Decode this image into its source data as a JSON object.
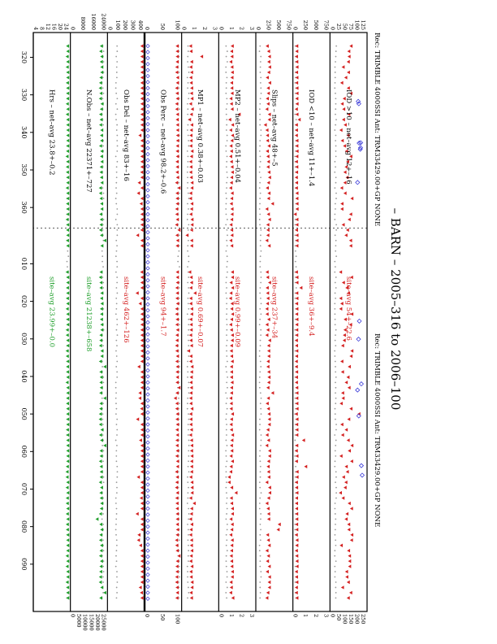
{
  "title": "– BARN – 2005–316 to 2006–100",
  "header_left": "Rec: TRIMBLE 4000SSI Ant: TRM33429.00+GP NONE",
  "header_right": "Rec: TRIMBLE 4000SSI Ant: TRM33429.00+GP NONE",
  "colors": {
    "red": "#d42020",
    "green": "#1e9e2a",
    "blue": "#3a3ad8",
    "gray": "#9a9a9a",
    "black": "#000000"
  },
  "chart_data": {
    "type": "scatter",
    "orientation": "rotated-90-clockwise",
    "x_ticks_1": [
      "320",
      "330",
      "340",
      "350",
      "360"
    ],
    "x_ticks_2": [
      "010",
      "020",
      "030",
      "040",
      "050",
      "060",
      "070",
      "080",
      "090"
    ],
    "year_break_after_doy": 365,
    "x_range": [
      316,
      465
    ],
    "panels": [
      {
        "id": "iod_gt10",
        "label_net": "IOD >10 – net–avg 12+–16",
        "label_site": "site–avg 54+–22.6",
        "ticks_left": [
          "125",
          "100",
          "75",
          "50",
          "25",
          "0"
        ],
        "ticks_right": [
          "250",
          "200",
          "150",
          "100",
          "50",
          "0"
        ],
        "ylim": [
          0,
          125
        ],
        "site_level": 54,
        "site_spread": 22.6,
        "net_level": 12,
        "color": "red",
        "extra": "blue_diamonds"
      },
      {
        "id": "iod_lt10",
        "label_net": "IOD <10 – net–avg 11+–1.4",
        "label_site": "site–avg 36+–9.4",
        "ticks_left": [
          "750",
          "500",
          "250",
          "0"
        ],
        "ticks_right": [
          "3",
          "2",
          "1",
          "0"
        ],
        "ylim": [
          0,
          750
        ],
        "site_level": 36,
        "site_spread": 9.4,
        "net_level": 11,
        "color": "red",
        "extra": "none"
      },
      {
        "id": "slips",
        "label_net": "Slips – net–avg 48+–5",
        "label_site": "site–avg 237+–34",
        "ticks_left": [
          "750",
          "500",
          "250",
          "0"
        ],
        "ticks_right": [],
        "ylim": [
          0,
          750
        ],
        "site_level": 237,
        "site_spread": 34,
        "net_level": 48,
        "color": "red",
        "extra": "none"
      },
      {
        "id": "mp2",
        "label_net": "MP2 – net–avg 0.51+–0.04",
        "label_site": "site–avg 0.99+–0.09",
        "ticks_left": [
          "3",
          "2",
          "1",
          "0"
        ],
        "ticks_right": [
          "3",
          "2",
          "1",
          "0"
        ],
        "ylim": [
          0,
          3
        ],
        "site_level": 0.99,
        "site_spread": 0.09,
        "net_level": 0.51,
        "color": "red",
        "extra": "none"
      },
      {
        "id": "mp1",
        "label_net": "MP1 – net–avg 0.38+–0.03",
        "label_site": "site–avg 0.69+–0.07",
        "ticks_left": [
          "3",
          "2",
          "1",
          "0"
        ],
        "ticks_right": [],
        "ylim": [
          0,
          3
        ],
        "site_level": 0.69,
        "site_spread": 0.07,
        "net_level": 0.38,
        "color": "red",
        "extra": "none"
      },
      {
        "id": "obs_perc",
        "label_net": "Obs Perc – net–avg 98.2+–0.6",
        "label_site": "site–avg 94+–1.7",
        "ticks_left": [
          "100",
          "50",
          "0"
        ],
        "ticks_right": [
          "100",
          "50",
          "0"
        ],
        "ylim": [
          0,
          100
        ],
        "site_level": 94,
        "site_spread": 1.7,
        "net_level": 98.2,
        "color": "red",
        "extra": "blue_diamonds_row"
      },
      {
        "id": "obs_del",
        "label_net": "Obs Del – net–avg 83+–16",
        "label_site": "site–avg 462+–126",
        "ticks_left": [
          "400",
          "300",
          "200",
          "100",
          "0"
        ],
        "ticks_right": [],
        "ylim": [
          0,
          400
        ],
        "site_level": 462,
        "site_spread": 126,
        "net_level": 83,
        "color": "red",
        "extra": "none"
      },
      {
        "id": "n_obs",
        "label_net": "N.Obs – net–avg 22371+–727",
        "label_site": "site–avg 21238+–658",
        "ticks_left": [
          "24000",
          "16000",
          "8000",
          "0"
        ],
        "ticks_right": [
          "25000",
          "20000",
          "15000",
          "10000",
          "5000",
          "0"
        ],
        "ylim": [
          0,
          24000
        ],
        "site_level": 21238,
        "site_spread": 658,
        "net_level": 22371,
        "color": "green",
        "extra": "none"
      },
      {
        "id": "hrs",
        "label_net": "Hrs – net–avg 23.8+–0.2",
        "label_site": "site–avg 23.99+–0.0",
        "ticks_left": [
          "24",
          "20",
          "16",
          "12",
          "8",
          "4"
        ],
        "ticks_right": [],
        "ylim": [
          4,
          24
        ],
        "site_level": 23.99,
        "site_spread": 0.0,
        "net_level": 23.8,
        "color": "green",
        "extra": "none"
      }
    ]
  }
}
